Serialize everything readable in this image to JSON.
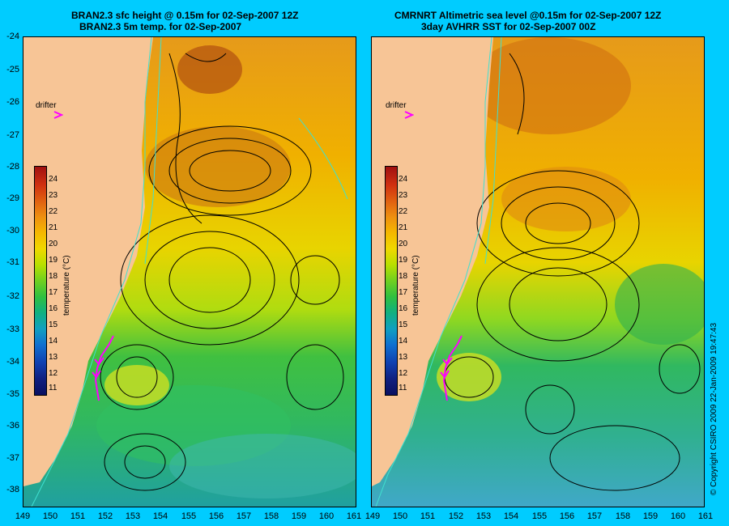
{
  "left_panel": {
    "title_line1": "BRAN2.3 sfc height @ 0.15m for 02-Sep-2007 12Z",
    "title_line2": "BRAN2.3 5m temp. for 02-Sep-2007"
  },
  "right_panel": {
    "title_line1": "CMRNRT Altimetric sea level  @0.15m  for 02-Sep-2007 12Z",
    "title_line2": "3day AVHRR SST for 02-Sep-2007 00Z"
  },
  "drifter_label": "drifter",
  "colorbar": {
    "title": "temperature (°C)",
    "ticks": [
      "24",
      "23",
      "22",
      "21",
      "20",
      "19",
      "18",
      "17",
      "16",
      "15",
      "14",
      "13",
      "12",
      "11"
    ],
    "colors": [
      "#a01010",
      "#d03010",
      "#e06010",
      "#ee9010",
      "#f5b800",
      "#f0d800",
      "#b8e000",
      "#70d020",
      "#30c040",
      "#10b080",
      "#10a0c0",
      "#1070d0",
      "#1040b0",
      "#102080"
    ]
  },
  "y_axis_ticks": [
    "-24",
    "-25",
    "-26",
    "-27",
    "-28",
    "-29",
    "-30",
    "-31",
    "-32",
    "-33",
    "-34",
    "-35",
    "-36",
    "-37",
    "-38"
  ],
  "x_axis_ticks": [
    "149",
    "150",
    "151",
    "152",
    "153",
    "154",
    "155",
    "156",
    "157",
    "158",
    "159",
    "160",
    "161"
  ],
  "land_color": "#f7c596",
  "copyright": "© Copyright CSIRO 2009   22-Jan-2009 19:47:43",
  "colors": {
    "background": "#00ccff",
    "drifter": "#ff00ff",
    "contour": "#000000",
    "isobath": "#40e0d0"
  }
}
